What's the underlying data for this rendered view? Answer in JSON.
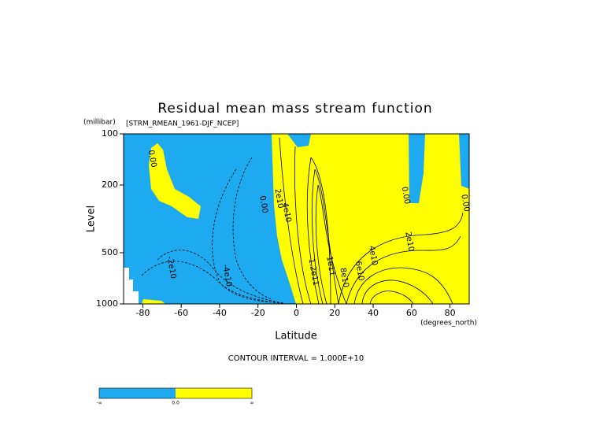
{
  "chart_data": {
    "type": "contour",
    "title": "Residual mean mass stream function",
    "subtitle": "[STRM_RMEAN_1961-DJF_NCEP]",
    "y_unit": "(millibar)",
    "y_label": "Level",
    "x_label": "Latitude",
    "x_unit": "(degrees_north)",
    "note": "CONTOUR INTERVAL = 1.000E+10",
    "xlim": [
      -90,
      90
    ],
    "xticks": [
      -80,
      -60,
      -40,
      -20,
      0,
      20,
      40,
      60,
      80
    ],
    "ylim": [
      1000,
      100
    ],
    "yticks": [
      100,
      200,
      500,
      1000
    ],
    "ylog": true,
    "colors": {
      "negative": "#1eaaf0",
      "positive": "#ffff00"
    },
    "contour_labels": [
      {
        "value": 0,
        "label": "0.00",
        "x": -75,
        "y": 140
      },
      {
        "value": 0,
        "label": "0.00",
        "x": -17,
        "y": 260
      },
      {
        "value": 20000000000,
        "label": "2e10",
        "x": -9,
        "y": 240
      },
      {
        "value": 40000000000,
        "label": "4e10",
        "x": -5,
        "y": 290
      },
      {
        "value": -20000000000,
        "label": "-2e10",
        "x": -65,
        "y": 610
      },
      {
        "value": -40000000000,
        "label": "-4e10",
        "x": -36,
        "y": 680
      },
      {
        "value": 0,
        "label": "0.00",
        "x": 57,
        "y": 230
      },
      {
        "value": 0,
        "label": "0.00",
        "x": 88,
        "y": 255
      },
      {
        "value": 20000000000,
        "label": "2e10",
        "x": 59,
        "y": 430
      },
      {
        "value": 40000000000,
        "label": "4e10",
        "x": 40,
        "y": 520
      },
      {
        "value": 60000000000,
        "label": "6e10",
        "x": 33,
        "y": 640
      },
      {
        "value": 80000000000,
        "label": "8e10",
        "x": 25,
        "y": 700
      },
      {
        "value": 100000000000,
        "label": "1e11",
        "x": 18,
        "y": 600
      },
      {
        "value": 120000000000,
        "label": "1.2e11",
        "x": 9,
        "y": 650
      }
    ],
    "colorbar_labels": [
      "-∞",
      "0.0",
      "∞"
    ]
  }
}
